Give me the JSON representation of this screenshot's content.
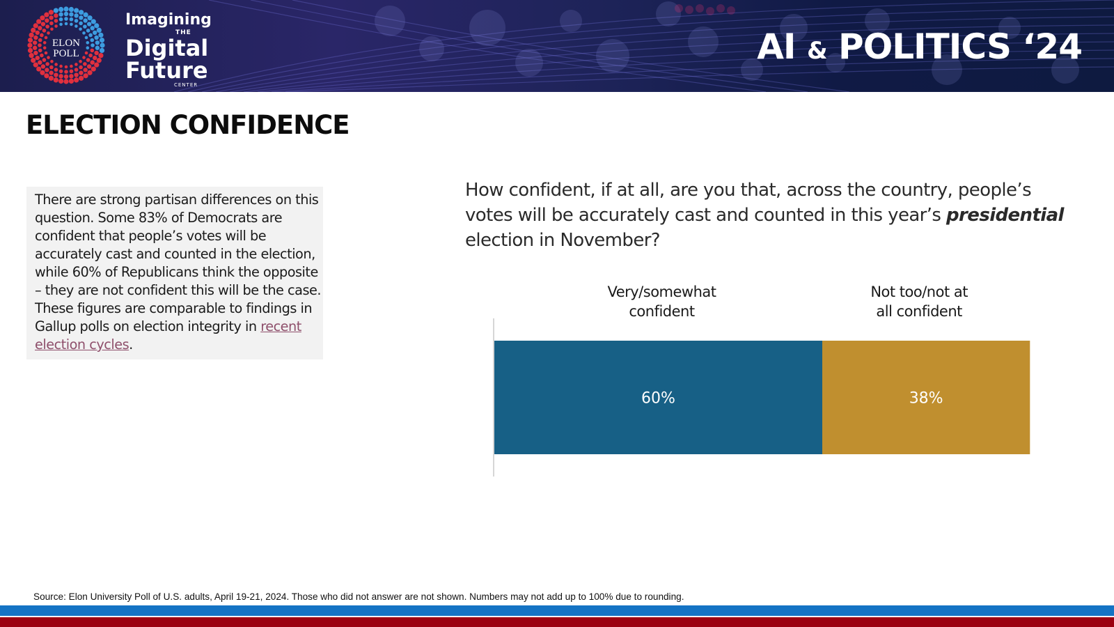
{
  "header": {
    "logo_line1": "ELON",
    "logo_line2": "POLL",
    "brand_line1": "Imagining",
    "brand_line2": "THE",
    "brand_line3": "Digital",
    "brand_line4": "Future",
    "brand_line5": "CENTER",
    "series_title_a": "AI",
    "series_title_amp": "&",
    "series_title_b": "POLITICS ‘24"
  },
  "page_title": "ELECTION CONFIDENCE",
  "note": {
    "text": " There are strong partisan differences on this question. Some 83% of Democrats are confident that people’s votes will be accurately cast and counted in the election, while 60% of Republicans think the opposite – they are not confident this will be the case.  These figures are comparable to findings in Gallup polls on election integrity in ",
    "link_text": "recent election cycles",
    "end": "."
  },
  "question": {
    "before": "How confident, if at all, are you that, across the country, people’s votes will be accurately cast and counted in this year’s ",
    "emphasis": "presidential",
    "after": " election in November?"
  },
  "chart_data": {
    "type": "bar",
    "orientation": "horizontal-stacked",
    "title": "",
    "categories": [
      "Very/somewhat confident",
      "Not too/not at all confident"
    ],
    "values": [
      60,
      38
    ],
    "labels": [
      "60%",
      "38%"
    ],
    "colors": [
      "#176086",
      "#c08f2f"
    ],
    "xlim": [
      0,
      100
    ],
    "grid": false
  },
  "source": "Source: Elon University Poll of U.S. adults, April 19-21, 2024. Those who did not answer are not shown. Numbers may not add up to 100% due to rounding."
}
